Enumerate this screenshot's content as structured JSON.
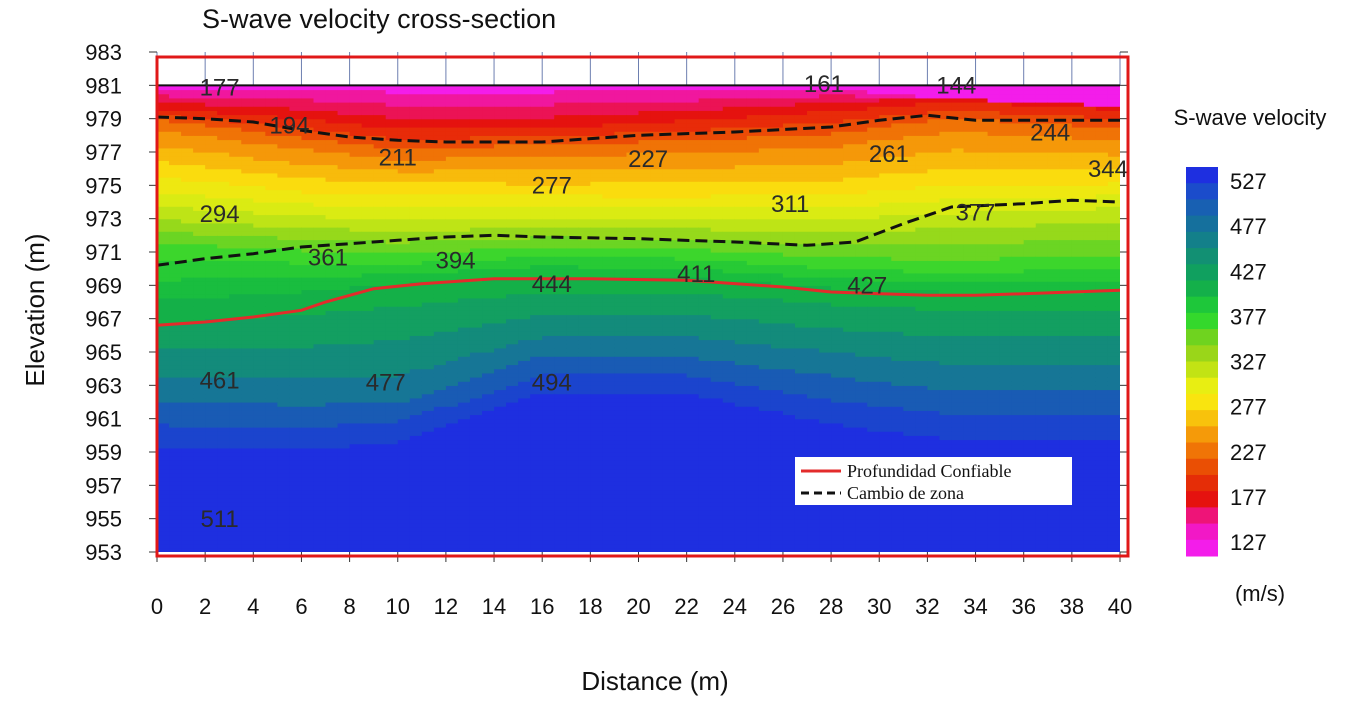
{
  "chart_data": {
    "type": "heatmap",
    "title": "S-wave velocity cross-section",
    "xlabel": "Distance (m)",
    "ylabel": "Elevation (m)",
    "xlim": [
      0,
      40
    ],
    "ylim": [
      953,
      983
    ],
    "x_ticks": [
      "0",
      "2",
      "4",
      "6",
      "8",
      "10",
      "12",
      "14",
      "16",
      "18",
      "20",
      "22",
      "24",
      "26",
      "28",
      "30",
      "32",
      "34",
      "36",
      "38",
      "40"
    ],
    "y_ticks": [
      "983",
      "981",
      "979",
      "977",
      "975",
      "973",
      "971",
      "969",
      "967",
      "965",
      "963",
      "961",
      "959",
      "957",
      "955",
      "953"
    ],
    "surface_elevation": 981,
    "bottom_elevation": 953,
    "grid": true,
    "velocity_profiles": {
      "distance": [
        0,
        6,
        10,
        16,
        22,
        28,
        33,
        40
      ],
      "series": [
        {
          "velocity": 127,
          "elevation": [
            981,
            981,
            981,
            981,
            981,
            981,
            980.2,
            979.8
          ]
        },
        {
          "velocity": 177,
          "elevation": [
            979.8,
            979.3,
            978.7,
            978.7,
            979.2,
            979.8,
            980.3,
            979.8
          ]
        },
        {
          "velocity": 227,
          "elevation": [
            978.8,
            977.6,
            976.9,
            977.2,
            977.4,
            977.8,
            978.8,
            978.2
          ]
        },
        {
          "velocity": 277,
          "elevation": [
            976.0,
            975.0,
            974.8,
            974.7,
            974.7,
            974.8,
            975.5,
            975.5
          ]
        },
        {
          "velocity": 327,
          "elevation": [
            973.3,
            972.8,
            972.6,
            972.8,
            972.7,
            972.6,
            972.9,
            973.3
          ]
        },
        {
          "velocity": 377,
          "elevation": [
            971.2,
            970.8,
            970.6,
            971.0,
            970.9,
            970.3,
            970.1,
            970.3
          ]
        },
        {
          "velocity": 427,
          "elevation": [
            967.5,
            968.2,
            968.8,
            969.3,
            969.2,
            968.6,
            968.3,
            968.3
          ]
        },
        {
          "velocity": 477,
          "elevation": [
            962.8,
            962.5,
            962.6,
            965.3,
            965.3,
            964.3,
            963.5,
            963.5
          ]
        },
        {
          "velocity": 527,
          "elevation": [
            958.5,
            958.5,
            959.0,
            962.0,
            962.0,
            960.0,
            959.0,
            959.0
          ]
        }
      ]
    },
    "contour_labels": [
      {
        "x": 2.6,
        "y": 980.4,
        "text": "177"
      },
      {
        "x": 27.7,
        "y": 980.6,
        "text": "161"
      },
      {
        "x": 33.2,
        "y": 980.5,
        "text": "144"
      },
      {
        "x": 5.5,
        "y": 978.1,
        "text": "194"
      },
      {
        "x": 10,
        "y": 976.2,
        "text": "211"
      },
      {
        "x": 20.4,
        "y": 976.1,
        "text": "227"
      },
      {
        "x": 30.4,
        "y": 976.4,
        "text": "261"
      },
      {
        "x": 37.1,
        "y": 977.7,
        "text": "244"
      },
      {
        "x": 16.4,
        "y": 974.5,
        "text": "277"
      },
      {
        "x": 39.5,
        "y": 975.5,
        "text": "344"
      },
      {
        "x": 2.6,
        "y": 972.8,
        "text": "294"
      },
      {
        "x": 26.3,
        "y": 973.4,
        "text": "311"
      },
      {
        "x": 34,
        "y": 972.9,
        "text": "377"
      },
      {
        "x": 7.1,
        "y": 970.2,
        "text": "361"
      },
      {
        "x": 12.4,
        "y": 970.0,
        "text": "394"
      },
      {
        "x": 22.4,
        "y": 969.2,
        "text": "411"
      },
      {
        "x": 16.4,
        "y": 968.6,
        "text": "444"
      },
      {
        "x": 29.5,
        "y": 968.5,
        "text": "427"
      },
      {
        "x": 2.6,
        "y": 962.8,
        "text": "461"
      },
      {
        "x": 9.5,
        "y": 962.7,
        "text": "477"
      },
      {
        "x": 16.4,
        "y": 962.7,
        "text": "494"
      },
      {
        "x": 2.6,
        "y": 954.5,
        "text": "511"
      }
    ],
    "lines": [
      {
        "name": "Profundidad Confiable",
        "color": "#e32b2b",
        "style": "solid",
        "x": [
          0,
          2,
          4,
          6,
          7,
          9,
          11,
          14,
          16,
          18,
          22,
          26,
          28,
          30,
          32,
          34,
          36,
          38,
          40
        ],
        "y": [
          966.6,
          966.8,
          967.1,
          967.5,
          968.0,
          968.8,
          969.1,
          969.4,
          969.4,
          969.4,
          969.3,
          968.9,
          968.6,
          968.5,
          968.4,
          968.4,
          968.5,
          968.6,
          968.7
        ]
      },
      {
        "name": "Cambio de zona",
        "color": "#111111",
        "style": "dashed",
        "x": [
          0,
          2,
          4,
          6,
          8,
          10,
          12,
          14,
          16,
          20,
          24,
          27,
          29,
          31,
          33,
          36,
          38,
          40
        ],
        "y": [
          970.2,
          970.6,
          970.9,
          971.3,
          971.5,
          971.7,
          971.9,
          972.0,
          971.9,
          971.8,
          971.6,
          971.4,
          971.6,
          972.7,
          973.7,
          973.9,
          974.1,
          974.0
        ]
      },
      {
        "name": "",
        "color": "#111111",
        "style": "dashed",
        "x": [
          0,
          2,
          4,
          6,
          8,
          10,
          12,
          14,
          16,
          20,
          24,
          28,
          30,
          32,
          34,
          36,
          38,
          40
        ],
        "y": [
          979.1,
          979.0,
          978.8,
          978.3,
          977.9,
          977.7,
          977.6,
          977.6,
          977.6,
          978.0,
          978.2,
          978.5,
          978.9,
          979.2,
          978.9,
          978.9,
          978.9,
          978.9
        ]
      }
    ],
    "legend": {
      "position": "bottom-right",
      "entries": [
        "Profundidad Confiable",
        "Cambio de zona"
      ]
    },
    "colorbar": {
      "title": "S-wave velocity",
      "unit": "(m/s)",
      "ticks": [
        "527",
        "477",
        "427",
        "377",
        "327",
        "277",
        "227",
        "177",
        "127"
      ],
      "colors": [
        "#1e2fe0",
        "#1b4ccb",
        "#1860b2",
        "#15709d",
        "#13808a",
        "#129073",
        "#10a05f",
        "#14b04a",
        "#1ec73a",
        "#34d82c",
        "#6fd31f",
        "#9ad619",
        "#c2e314",
        "#e8ee12",
        "#f9e40f",
        "#f8c20c",
        "#f59a09",
        "#f07406",
        "#ea4f04",
        "#e52d07",
        "#e5120f",
        "#ee1478",
        "#f218c6",
        "#f31dea"
      ]
    },
    "frame_color": "#e01818"
  }
}
